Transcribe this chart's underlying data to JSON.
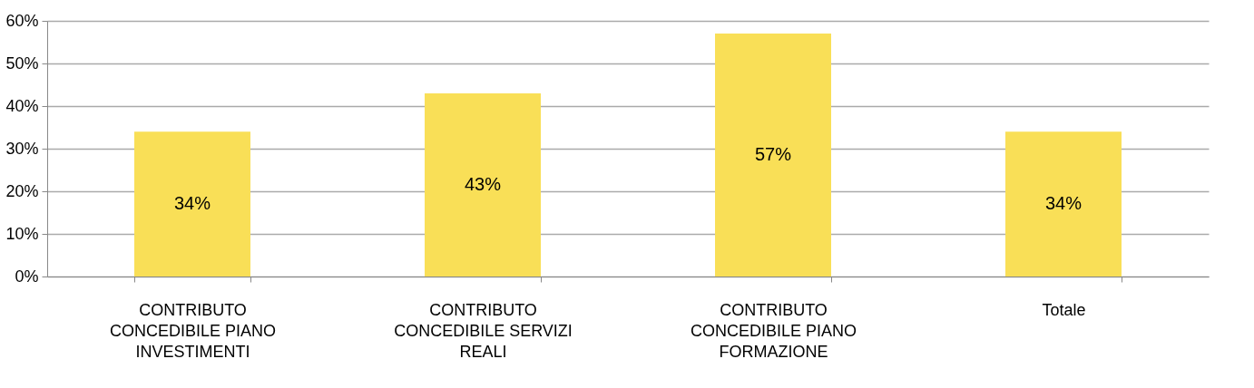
{
  "chart_data": {
    "type": "bar",
    "categories": [
      "CONTRIBUTO CONCEDIBILE PIANO INVESTIMENTI",
      "CONTRIBUTO CONCEDIBILE SERVIZI REALI",
      "CONTRIBUTO CONCEDIBILE PIANO FORMAZIONE",
      "Totale"
    ],
    "values": [
      34,
      43,
      57,
      34
    ],
    "value_labels": [
      "34%",
      "43%",
      "57%",
      "34%"
    ],
    "color": "#f9df57",
    "ylim": [
      0,
      60
    ],
    "yticks": [
      {
        "value": 0,
        "label": "0%"
      },
      {
        "value": 10,
        "label": "10%"
      },
      {
        "value": 20,
        "label": "20%"
      },
      {
        "value": 30,
        "label": "30%"
      },
      {
        "value": 40,
        "label": "40%"
      },
      {
        "value": 50,
        "label": "50%"
      },
      {
        "value": 60,
        "label": "60%"
      }
    ],
    "grid": "y"
  }
}
